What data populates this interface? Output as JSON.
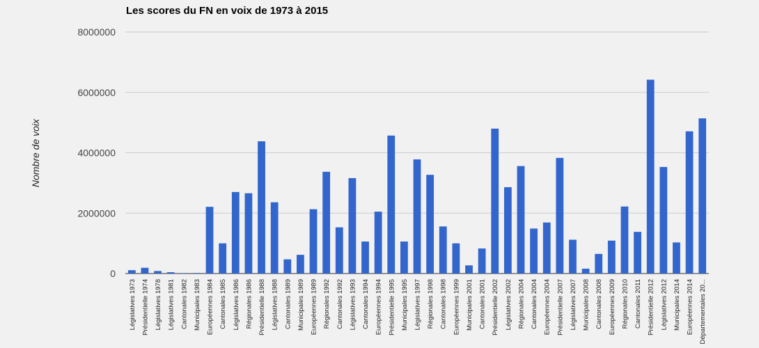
{
  "chart_data": {
    "type": "bar",
    "title": "Les scores du FN en voix de 1973 à 2015",
    "xlabel": "",
    "ylabel": "Nombre de voix",
    "ylim": [
      0,
      8000000
    ],
    "yticks": [
      "0",
      "2000000",
      "4000000",
      "6000000",
      "8000000"
    ],
    "grid": true,
    "bar_color": "#3366cc",
    "categories": [
      "Législatives 1973",
      "Présidentielle 1974",
      "Législatives 1978",
      "Législatives 1981",
      "Cantonales 1982",
      "Municipales 1983",
      "Européennes 1984",
      "Cantonales 1985",
      "Législatives 1986",
      "Régionales 1986",
      "Présidentielle 1988",
      "Législatives 1988",
      "Cantonales 1989",
      "Municipales 1989",
      "Européennes 1989",
      "Régionales 1992",
      "Cantonales 1992",
      "Législatives 1993",
      "Cantonales 1994",
      "Européennes 1994",
      "Présidentielle 1995",
      "Municipales 1995",
      "Législatives 1997",
      "Régionales 1998",
      "Cantonales 1998",
      "Européennes 1999",
      "Municipales 2001",
      "Cantonales 2001",
      "Présidentielle 2002",
      "Législatives 2002",
      "Régionales 2004",
      "Cantonales 2004",
      "Européennes 2004",
      "Présidentielle 2007",
      "Législatives 2007",
      "Municipales 2008",
      "Cantonales 2008",
      "Européennes 2009",
      "Régionales 2010",
      "Cantonales 2011",
      "Présidentielle 2012",
      "Législatives 2012",
      "Municipales 2014",
      "Européennes 2014",
      "Départementales 20..."
    ],
    "values": [
      110000,
      190000,
      83000,
      44000,
      15000,
      18000,
      2210000,
      1000000,
      2700000,
      2660000,
      4380000,
      2360000,
      470000,
      620000,
      2130000,
      3370000,
      1530000,
      3160000,
      1060000,
      2050000,
      4570000,
      1060000,
      3780000,
      3270000,
      1560000,
      1000000,
      270000,
      830000,
      4800000,
      2860000,
      3560000,
      1490000,
      1690000,
      3830000,
      1120000,
      160000,
      650000,
      1090000,
      2220000,
      1380000,
      6420000,
      3530000,
      1030000,
      4710000,
      5140000
    ]
  }
}
